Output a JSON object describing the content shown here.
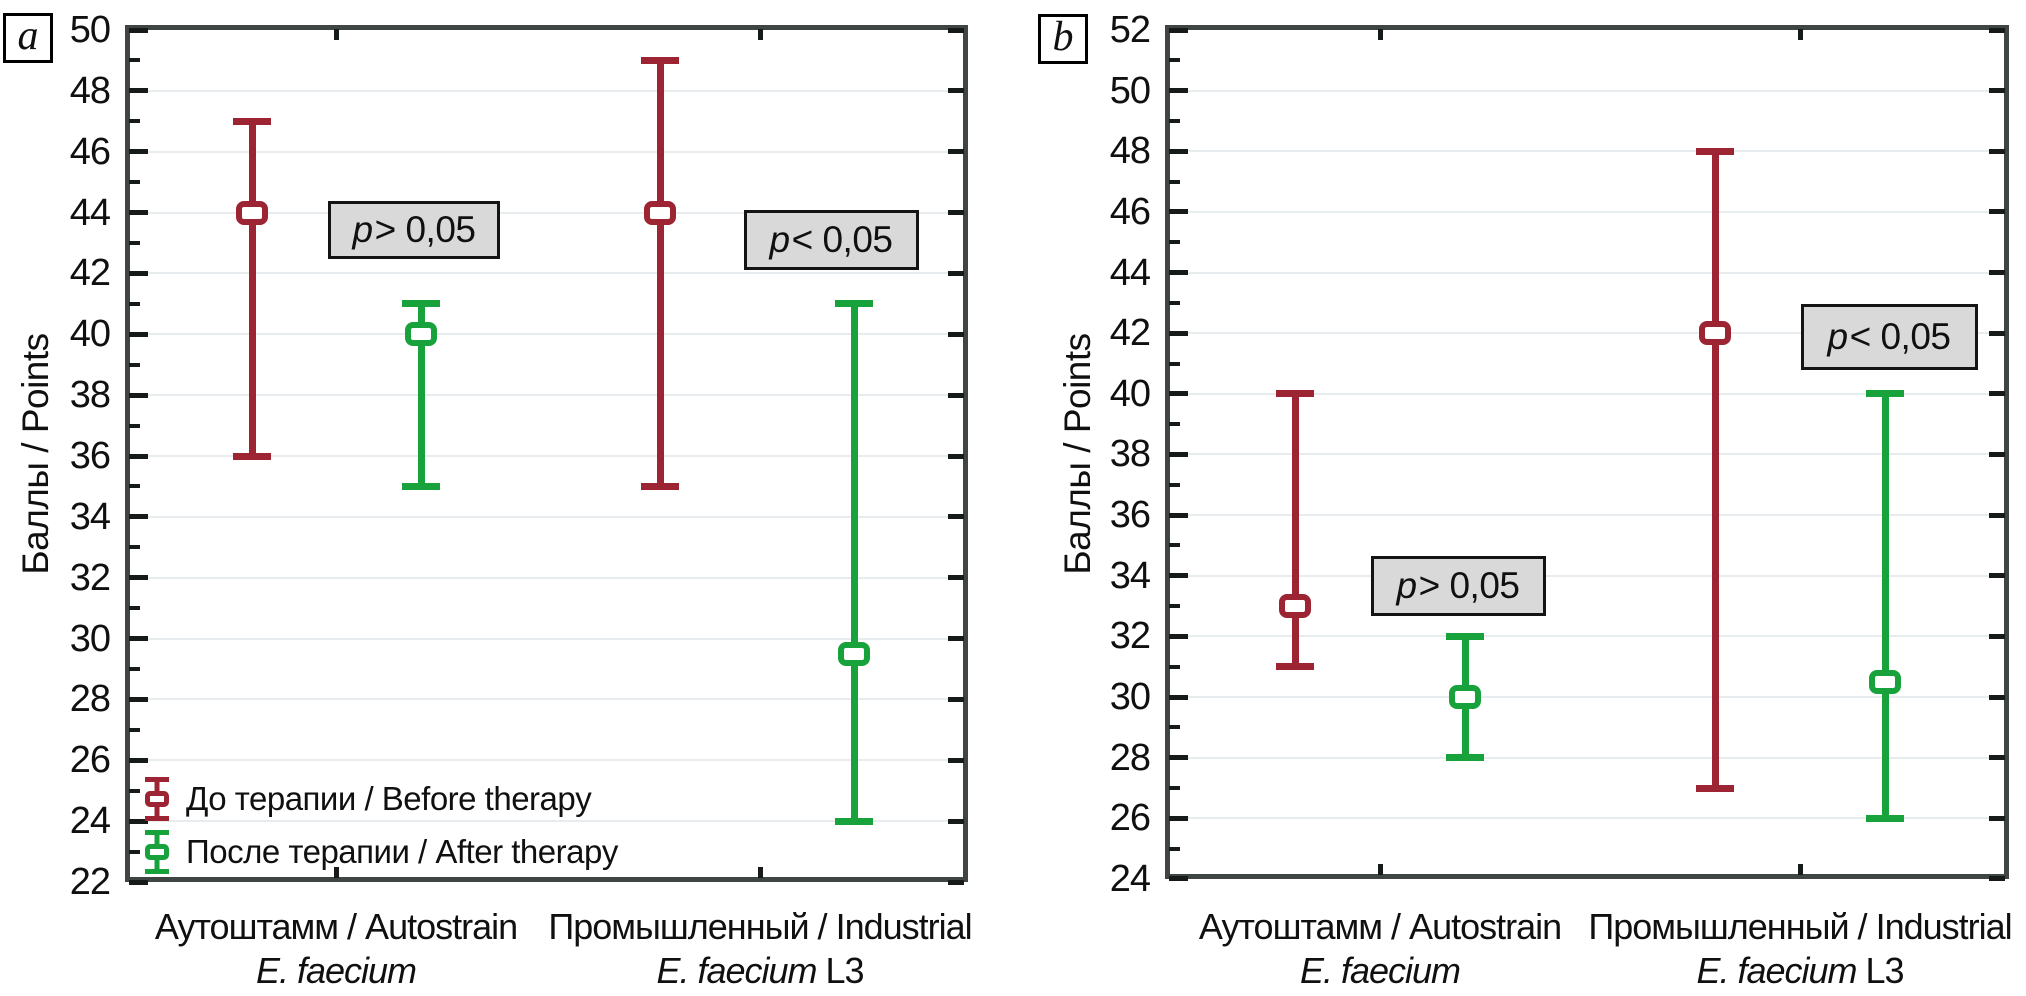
{
  "figure": {
    "background": "#ffffff"
  },
  "colors": {
    "before": "#9c2433",
    "after": "#18a23c",
    "frame": "#3f4543",
    "grid": "#e7edee",
    "p_box_fill": "#d9d9d9",
    "p_box_border": "#141414",
    "text": "#101010"
  },
  "legend": {
    "items": [
      {
        "key": "before",
        "label": "До терапии / Before therapy"
      },
      {
        "key": "after",
        "label": "После терапии / After therapy"
      }
    ],
    "location": "bottom-left of panel a"
  },
  "chart_data": [
    {
      "id": "a",
      "panel_label": "a",
      "type": "errorbar",
      "ylabel": "Баллы / Points",
      "ylim": [
        22,
        50
      ],
      "ytick_step": 2,
      "grid": "horizontal",
      "legend_position": "bottom-left",
      "categories": [
        {
          "line1": "Аутоштамм / Autostrain",
          "strain_italic": "E. faecium",
          "strain_suffix": ""
        },
        {
          "line1": "Промышленный / Industrial",
          "strain_italic": "E. faecium",
          "strain_suffix": " L3"
        }
      ],
      "series": [
        {
          "name": "До терапии / Before therapy",
          "key": "before",
          "points": [
            {
              "category": 0,
              "center": 44,
              "low": 36,
              "high": 47
            },
            {
              "category": 1,
              "center": 44,
              "low": 35,
              "high": 49
            }
          ]
        },
        {
          "name": "После терапии / After therapy",
          "key": "after",
          "points": [
            {
              "category": 0,
              "center": 40,
              "low": 35,
              "high": 41
            },
            {
              "category": 1,
              "center": 29.5,
              "low": 24,
              "high": 41
            }
          ]
        }
      ],
      "annotations": [
        {
          "text": "p > 0,05",
          "refers_to": "Autostrain before vs after"
        },
        {
          "text": "p < 0,05",
          "refers_to": "Industrial before vs after"
        }
      ]
    },
    {
      "id": "b",
      "panel_label": "b",
      "type": "errorbar",
      "ylabel": "Баллы / Points",
      "ylim": [
        24,
        52
      ],
      "ytick_step": 2,
      "grid": "horizontal",
      "legend_position": "none",
      "categories": [
        {
          "line1": "Аутоштамм / Autostrain",
          "strain_italic": "E. faecium",
          "strain_suffix": ""
        },
        {
          "line1": "Промышленный / Industrial",
          "strain_italic": "E. faecium",
          "strain_suffix": " L3"
        }
      ],
      "series": [
        {
          "name": "До терапии / Before therapy",
          "key": "before",
          "points": [
            {
              "category": 0,
              "center": 33,
              "low": 31,
              "high": 40
            },
            {
              "category": 1,
              "center": 42,
              "low": 27,
              "high": 48
            }
          ]
        },
        {
          "name": "После терапии / After therapy",
          "key": "after",
          "points": [
            {
              "category": 0,
              "center": 30,
              "low": 28,
              "high": 32
            },
            {
              "category": 1,
              "center": 30.5,
              "low": 26,
              "high": 40
            }
          ]
        }
      ],
      "annotations": [
        {
          "text": "p > 0,05",
          "refers_to": "Autostrain before vs after"
        },
        {
          "text": "p < 0,05",
          "refers_to": "Industrial before vs after"
        }
      ]
    }
  ]
}
